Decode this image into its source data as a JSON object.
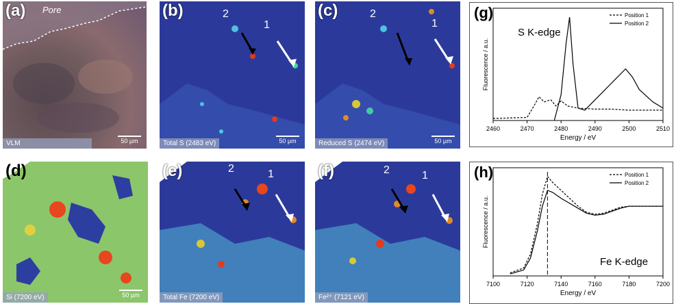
{
  "panels": {
    "a": {
      "label": "(a)",
      "caption": "VLM",
      "scale": "50 µm",
      "pore": "Pore"
    },
    "b": {
      "label": "(b)",
      "caption": "Total S (2483 eV)",
      "scale": "50 µm",
      "pos1": "1",
      "pos2": "2"
    },
    "c": {
      "label": "(c)",
      "caption": "Reduced S (2474 eV)",
      "scale": "50 µm",
      "pos1": "1",
      "pos2": "2"
    },
    "d": {
      "label": "(d)",
      "caption": "Si (7200 eV)",
      "scale": "50 µm"
    },
    "e": {
      "label": "(e)",
      "caption": "Total Fe (7200 eV)",
      "pos1": "1",
      "pos2": "2"
    },
    "f": {
      "label": "(f)",
      "caption": "Fe²⁺ (7121 eV)",
      "pos1": "1",
      "pos2": "2"
    }
  },
  "chart_data": [
    {
      "type": "line",
      "panel_label": "(g)",
      "annotation": "S K-edge",
      "xlabel": "Energy / eV",
      "ylabel": "Fluorescence / a.u.",
      "xlim": [
        2460,
        2510
      ],
      "xticks": [
        2460,
        2470,
        2480,
        2490,
        2500,
        2510
      ],
      "legend_position": "top-right",
      "series": [
        {
          "name": "Position 1",
          "style": "dashed",
          "x": [
            2460,
            2470,
            2472,
            2473.5,
            2475,
            2477,
            2478.5,
            2480,
            2482,
            2485,
            2490,
            2495,
            2500,
            2505,
            2510
          ],
          "y": [
            0.02,
            0.03,
            0.14,
            0.23,
            0.18,
            0.2,
            0.14,
            0.19,
            0.14,
            0.12,
            0.11,
            0.11,
            0.1,
            0.1,
            0.1
          ]
        },
        {
          "name": "Position 2",
          "style": "solid",
          "x": [
            2478,
            2480,
            2481.5,
            2482.5,
            2483.5,
            2485,
            2487,
            2490,
            2493,
            2496,
            2499,
            2501,
            2503,
            2505,
            2507,
            2510
          ],
          "y": [
            0.0,
            0.25,
            0.75,
            1.0,
            0.55,
            0.12,
            0.1,
            0.2,
            0.3,
            0.4,
            0.5,
            0.42,
            0.3,
            0.24,
            0.18,
            0.12
          ]
        }
      ]
    },
    {
      "type": "line",
      "panel_label": "(h)",
      "annotation": "Fe K-edge",
      "xlabel": "Energy / eV",
      "ylabel": "Fluorescence / a.u.",
      "xlim": [
        7100,
        7200
      ],
      "xticks": [
        7100,
        7120,
        7140,
        7160,
        7180,
        7200
      ],
      "legend_position": "top-right",
      "vline": 7132,
      "series": [
        {
          "name": "Position 1",
          "style": "dashed",
          "x": [
            7110,
            7118,
            7122,
            7126,
            7129,
            7132,
            7135,
            7140,
            7145,
            7150,
            7155,
            7160,
            7165,
            7170,
            7175,
            7180,
            7190,
            7200
          ],
          "y": [
            0.03,
            0.08,
            0.22,
            0.52,
            0.82,
            1.0,
            0.94,
            0.86,
            0.78,
            0.7,
            0.64,
            0.62,
            0.63,
            0.66,
            0.69,
            0.7,
            0.7,
            0.7
          ]
        },
        {
          "name": "Position 2",
          "style": "solid",
          "x": [
            7110,
            7118,
            7122,
            7126,
            7129,
            7132,
            7135,
            7140,
            7145,
            7150,
            7155,
            7160,
            7165,
            7170,
            7175,
            7180,
            7190,
            7200
          ],
          "y": [
            0.02,
            0.06,
            0.18,
            0.45,
            0.7,
            0.86,
            0.84,
            0.78,
            0.73,
            0.68,
            0.63,
            0.61,
            0.62,
            0.65,
            0.68,
            0.7,
            0.7,
            0.7
          ]
        }
      ]
    }
  ]
}
